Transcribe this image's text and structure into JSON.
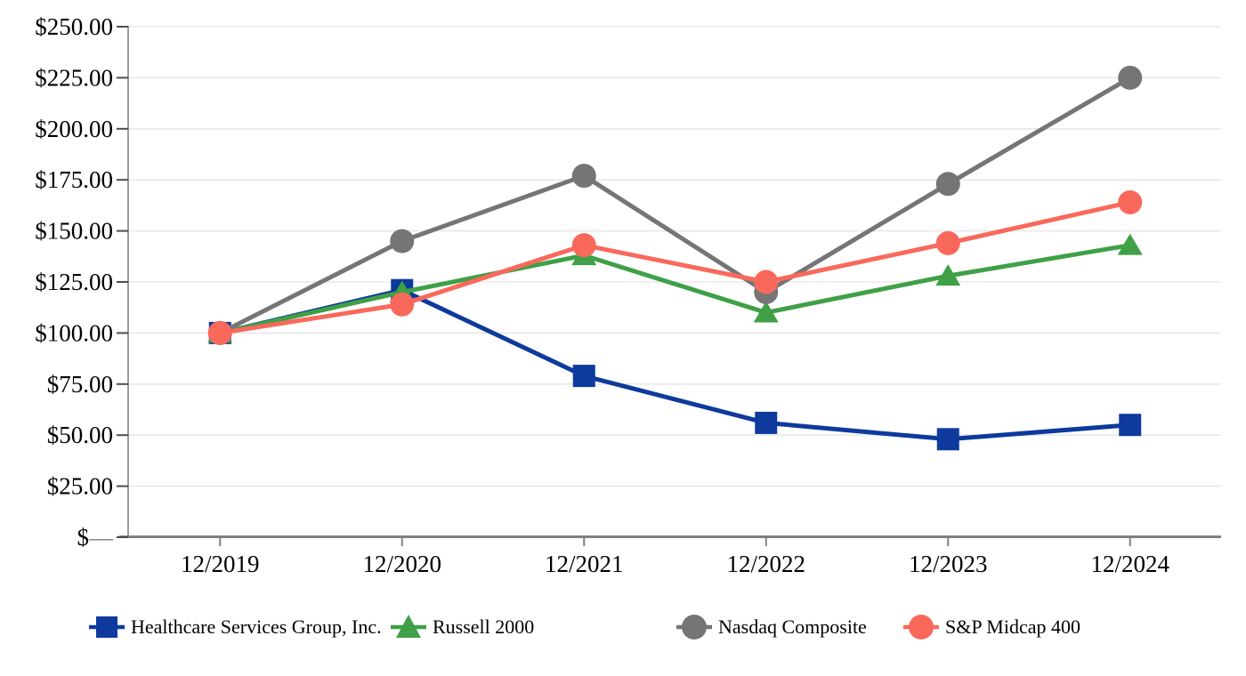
{
  "chart_data": {
    "type": "line",
    "title": "",
    "xlabel": "",
    "ylabel": "",
    "categories": [
      "12/2019",
      "12/2020",
      "12/2021",
      "12/2022",
      "12/2023",
      "12/2024"
    ],
    "series": [
      {
        "id": "hcsg",
        "name": "Healthcare Services Group, Inc.",
        "color": "#0D3A9C",
        "marker": "square",
        "values": [
          100,
          121,
          79,
          56,
          48,
          55
        ]
      },
      {
        "id": "russell-2000",
        "name": "Russell 2000",
        "color": "#3FA047",
        "marker": "triangle",
        "values": [
          100,
          120,
          138,
          110,
          128,
          143
        ]
      },
      {
        "id": "nasdaq-composite",
        "name": "Nasdaq Composite",
        "color": "#757575",
        "marker": "circle",
        "values": [
          100,
          145,
          177,
          120,
          173,
          225
        ]
      },
      {
        "id": "sp-midcap-400",
        "name": "S&P Midcap 400",
        "color": "#F9695B",
        "marker": "circle",
        "values": [
          100,
          114,
          143,
          125,
          144,
          164
        ]
      }
    ],
    "ylim": [
      0,
      250
    ],
    "y_ticks": [
      {
        "value": 250,
        "label": "$250.00"
      },
      {
        "value": 225,
        "label": "$225.00"
      },
      {
        "value": 200,
        "label": "$200.00"
      },
      {
        "value": 175,
        "label": "$175.00"
      },
      {
        "value": 150,
        "label": "$150.00"
      },
      {
        "value": 125,
        "label": "$125.00"
      },
      {
        "value": 100,
        "label": "$100.00"
      },
      {
        "value": 75,
        "label": "$75.00"
      },
      {
        "value": 50,
        "label": "$50.00"
      },
      {
        "value": 25,
        "label": "$25.00"
      },
      {
        "value": 0,
        "label": "$—"
      }
    ],
    "grid": true,
    "legend_position": "bottom"
  },
  "colors": {
    "gridline": "#E8E8E8",
    "y_axis_line": "#9C9C9C",
    "x_axis_line": "#808080",
    "y_tick": "#4D4D4D",
    "x_tick": "#808080",
    "label_text": "#000000",
    "zero_dash": "#808080"
  }
}
